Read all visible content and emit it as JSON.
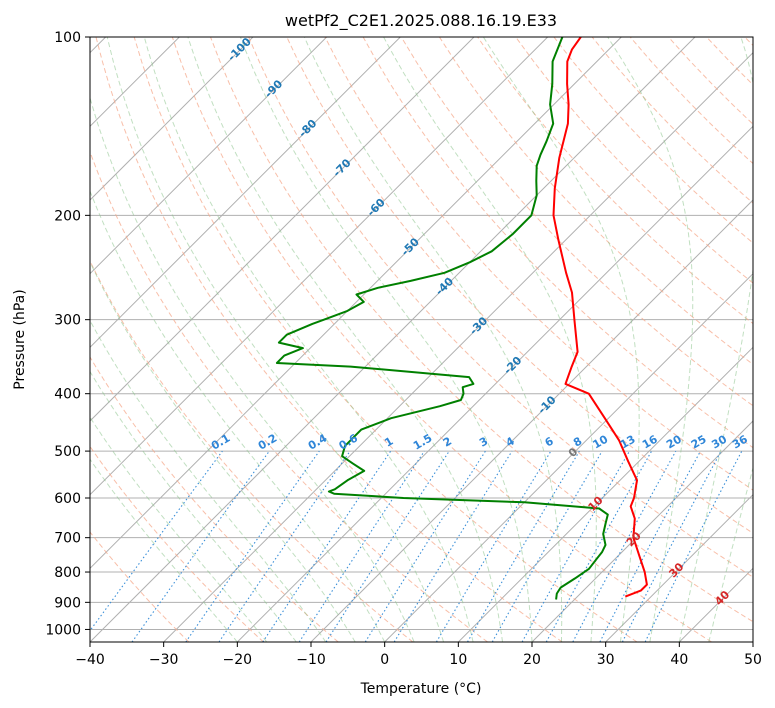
{
  "chart_data": {
    "type": "skew-t",
    "title": "wetPf2_C2E1.2025.088.16.19.E33",
    "xlabel": "Temperature (°C)",
    "ylabel": "Pressure (hPa)",
    "xlim": [
      -40,
      50
    ],
    "ylim": [
      1050,
      100
    ],
    "y_scale": "log",
    "grid": true,
    "x_ticks": [
      -40,
      -30,
      -20,
      -10,
      0,
      10,
      20,
      30,
      40,
      50
    ],
    "y_ticks": [
      100,
      200,
      300,
      400,
      500,
      600,
      700,
      800,
      900,
      1000
    ],
    "x_tick_labels": [
      "−40",
      "−30",
      "−20",
      "−10",
      "0",
      "10",
      "20",
      "30",
      "40",
      "50"
    ],
    "y_tick_labels": [
      "100",
      "200",
      "300",
      "400",
      "500",
      "600",
      "700",
      "800",
      "900",
      "1000"
    ],
    "isotherm_labels": [
      "-100",
      "-90",
      "-80",
      "-70",
      "-60",
      "-50",
      "-40",
      "-30",
      "-20",
      "-10",
      "0",
      "10",
      "20",
      "30",
      "40"
    ],
    "mixing_ratio_labels": [
      "0.1",
      "0.2",
      "0.4",
      "0.6",
      "1",
      "1.5",
      "2",
      "3",
      "4",
      "6",
      "8",
      "10",
      "13",
      "16",
      "20",
      "25",
      "30",
      "36"
    ],
    "series": [
      {
        "role": "temperature",
        "color": "#ff0000",
        "points": [
          [
            880,
            26.5
          ],
          [
            860,
            27.8
          ],
          [
            840,
            27.8
          ],
          [
            800,
            25.8
          ],
          [
            750,
            22.8
          ],
          [
            700,
            19.6
          ],
          [
            650,
            17.2
          ],
          [
            620,
            15.0
          ],
          [
            600,
            14.3
          ],
          [
            560,
            12.3
          ],
          [
            520,
            8.5
          ],
          [
            480,
            4.5
          ],
          [
            440,
            -0.5
          ],
          [
            400,
            -6.0
          ],
          [
            385,
            -10.5
          ],
          [
            360,
            -12.0
          ],
          [
            340,
            -13.2
          ],
          [
            300,
            -18.0
          ],
          [
            270,
            -22.0
          ],
          [
            250,
            -25.5
          ],
          [
            220,
            -31.0
          ],
          [
            200,
            -35.0
          ],
          [
            180,
            -38.5
          ],
          [
            160,
            -42.0
          ],
          [
            140,
            -45.5
          ],
          [
            130,
            -48.0
          ],
          [
            120,
            -51.0
          ],
          [
            110,
            -54.0
          ],
          [
            105,
            -55.0
          ],
          [
            100,
            -55.5
          ]
        ]
      },
      {
        "role": "dewpoint",
        "color": "#008000",
        "points": [
          [
            890,
            17.5
          ],
          [
            870,
            16.8
          ],
          [
            850,
            16.5
          ],
          [
            820,
            17.2
          ],
          [
            790,
            17.8
          ],
          [
            760,
            17.5
          ],
          [
            740,
            17.3
          ],
          [
            720,
            16.8
          ],
          [
            690,
            15.0
          ],
          [
            660,
            13.8
          ],
          [
            640,
            13.0
          ],
          [
            625,
            11.0
          ],
          [
            610,
            0.0
          ],
          [
            600,
            -17.0
          ],
          [
            590,
            -27.0
          ],
          [
            585,
            -28.0
          ],
          [
            580,
            -27.5
          ],
          [
            560,
            -27.0
          ],
          [
            540,
            -26.0
          ],
          [
            525,
            -28.5
          ],
          [
            510,
            -31.0
          ],
          [
            490,
            -32.0
          ],
          [
            460,
            -32.0
          ],
          [
            440,
            -29.5
          ],
          [
            420,
            -24.5
          ],
          [
            410,
            -22.5
          ],
          [
            400,
            -23.0
          ],
          [
            390,
            -24.0
          ],
          [
            385,
            -23.0
          ],
          [
            375,
            -24.5
          ],
          [
            360,
            -42.0
          ],
          [
            355,
            -52.5
          ],
          [
            345,
            -52.5
          ],
          [
            335,
            -51.0
          ],
          [
            328,
            -55.0
          ],
          [
            318,
            -55.0
          ],
          [
            305,
            -53.0
          ],
          [
            300,
            -52.0
          ],
          [
            290,
            -50.0
          ],
          [
            280,
            -49.0
          ],
          [
            272,
            -51.0
          ],
          [
            265,
            -49.0
          ],
          [
            258,
            -45.5
          ],
          [
            250,
            -42.0
          ],
          [
            240,
            -40.0
          ],
          [
            230,
            -38.5
          ],
          [
            215,
            -38.0
          ],
          [
            200,
            -38.0
          ],
          [
            185,
            -40.0
          ],
          [
            175,
            -42.0
          ],
          [
            165,
            -44.0
          ],
          [
            158,
            -45.0
          ],
          [
            150,
            -46.0
          ],
          [
            140,
            -47.5
          ],
          [
            130,
            -50.5
          ],
          [
            120,
            -53.0
          ],
          [
            110,
            -56.0
          ],
          [
            100,
            -58.0
          ]
        ]
      }
    ]
  }
}
